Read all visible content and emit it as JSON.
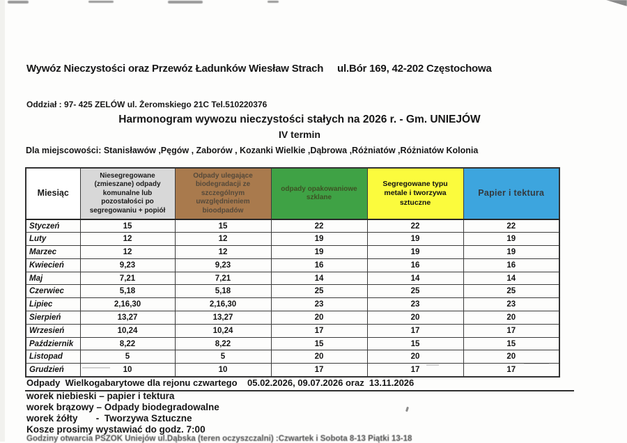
{
  "document": {
    "company_header": "Wywóz Nieczystości oraz Przewóz Ładunków Wiesław Strach     ul.Bór 169, 42-202 Częstochowa",
    "branch_line": "Oddział : 97- 425 ZELÓW ul. Żeromskiego 21C Tel.510220376",
    "title": "Harmonogram wywozu nieczystości stałych na 2026 r. - Gm. UNIEJÓW",
    "term": "IV termin",
    "localities_line": "Dla miejscowości: Stanisławów ,Pęgów , Zaborów , Kozanki Wielkie ,Dąbrowa ,Różniatów ,Różniatów Kolonia"
  },
  "table": {
    "month_column_header": "Miesiąc",
    "columns": [
      {
        "label": "Niesegregowane (zmieszane) odpady komunalne lub pozostałości po segregowaniu + popiół",
        "bg": "#d8d8d8",
        "fg": "#1b1b1b"
      },
      {
        "label": "Odpady ulegające biodegradacji ze szczególnym uwzględnieniem bioodpadów",
        "bg": "#a97a4d",
        "fg": "#55493a"
      },
      {
        "label": "odpady opakowaniowe szklane",
        "bg": "#3fa245",
        "fg": "#3d5224"
      },
      {
        "label": "Segregowane typu metale i tworzywa sztuczne",
        "bg": "#fbfb3d",
        "fg": "#111111"
      },
      {
        "label": "Papier i tektura",
        "bg": "#3da5de",
        "fg": "#33393e"
      }
    ],
    "rows": [
      {
        "month": "Styczeń",
        "values": [
          "15",
          "15",
          "22",
          "22",
          "22"
        ]
      },
      {
        "month": "Luty",
        "values": [
          "12",
          "12",
          "19",
          "19",
          "19"
        ]
      },
      {
        "month": "Marzec",
        "values": [
          "12",
          "12",
          "19",
          "19",
          "19"
        ]
      },
      {
        "month": "Kwiecień",
        "values": [
          "9,23",
          "9,23",
          "16",
          "16",
          "16"
        ]
      },
      {
        "month": "Maj",
        "values": [
          "7,21",
          "7,21",
          "14",
          "14",
          "14"
        ]
      },
      {
        "month": "Czerwiec",
        "values": [
          "5,18",
          "5,18",
          "25",
          "25",
          "25"
        ]
      },
      {
        "month": "Lipiec",
        "values": [
          "2,16,30",
          "2,16,30",
          "23",
          "23",
          "23"
        ]
      },
      {
        "month": "Sierpień",
        "values": [
          "13,27",
          "13,27",
          "20",
          "20",
          "20"
        ]
      },
      {
        "month": "Wrzesień",
        "values": [
          "10,24",
          "10,24",
          "17",
          "17",
          "17"
        ]
      },
      {
        "month": "Październik",
        "values": [
          "8,22",
          "8,22",
          "15",
          "15",
          "15"
        ]
      },
      {
        "month": "Listopad",
        "values": [
          "5",
          "5",
          "20",
          "20",
          "20"
        ]
      },
      {
        "month": "Grudzień",
        "values": [
          "10",
          "10",
          "17",
          "17",
          "17"
        ]
      }
    ]
  },
  "footer": {
    "bulky_waste_line": "Odpady  Wielkogabarytowe dla rejonu czwartego    05.02.2026, 09.07.2026 oraz  13.11.2026",
    "bag_notes": [
      "worek niebieski – papier i tektura",
      "worek brązowy – Odpady biodegradowalne",
      "worek żółty       -  Tworzywa Sztuczne"
    ],
    "bins_note": "Kosze prosimy wystawiać do godz. 7:00",
    "clipped_line": "Godziny otwarcia PSZOK Uniejów ul.Dąbska (teren oczyszczalni) :Czwartek i Sobota 8-13 Piątki 13-18"
  }
}
